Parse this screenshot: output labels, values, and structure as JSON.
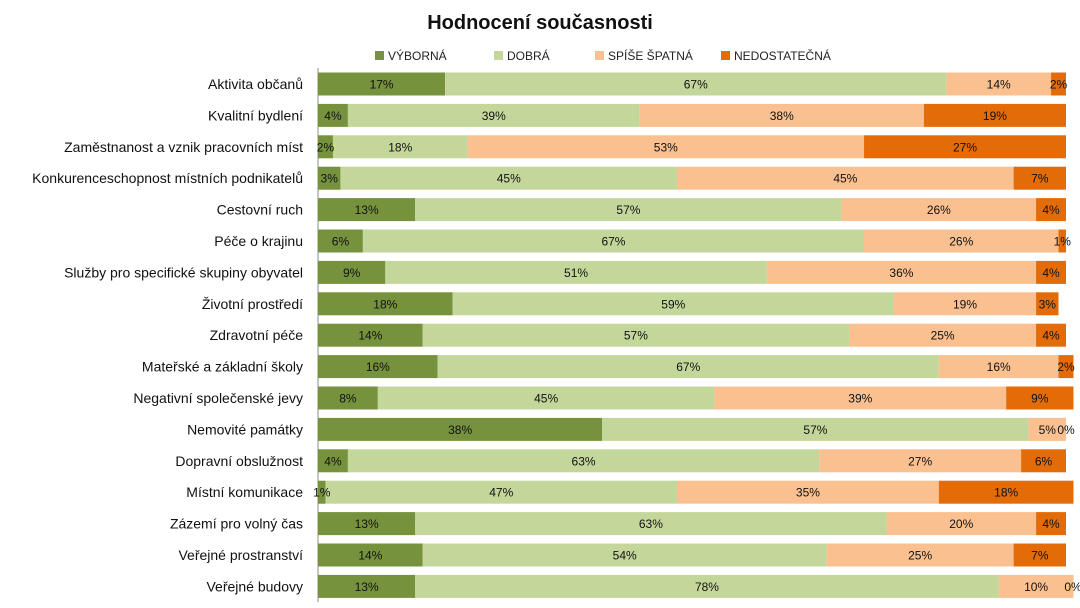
{
  "chart_data": {
    "type": "bar",
    "orientation": "horizontal",
    "stacked": true,
    "percent": true,
    "title": "Hodnocení současnosti",
    "legend_position": "top",
    "grid": false,
    "xlim": [
      0,
      100
    ],
    "categories": [
      "Aktivita občanů",
      "Kvalitní bydlení",
      "Zaměstnanost a vznik pracovních míst",
      "Konkurenceschopnost místních podnikatelů",
      "Cestovní ruch",
      "Péče o krajinu",
      "Služby pro specifické skupiny obyvatel",
      "Životní prostředí",
      "Zdravotní péče",
      "Mateřské a základní školy",
      "Negativní společenské jevy",
      "Nemovité památky",
      "Dopravní obslužnost",
      "Místní komunikace",
      "Zázemí pro volný čas",
      "Veřejné prostranství",
      "Veřejné budovy"
    ],
    "series": [
      {
        "name": "VÝBORNÁ",
        "color": "#76923c",
        "values": [
          17,
          4,
          2,
          3,
          13,
          6,
          9,
          18,
          14,
          16,
          8,
          38,
          4,
          1,
          13,
          14,
          13
        ]
      },
      {
        "name": "DOBRÁ",
        "color": "#c4d79b",
        "values": [
          67,
          39,
          18,
          45,
          57,
          67,
          51,
          59,
          57,
          67,
          45,
          57,
          63,
          47,
          63,
          54,
          78
        ]
      },
      {
        "name": "SPÍŠE ŠPATNÁ",
        "color": "#fac090",
        "values": [
          14,
          38,
          53,
          45,
          26,
          26,
          36,
          19,
          25,
          16,
          39,
          5,
          27,
          35,
          20,
          25,
          10
        ]
      },
      {
        "name": "NEDOSTATEČNÁ",
        "color": "#e36c09",
        "values": [
          2,
          19,
          27,
          7,
          4,
          1,
          4,
          3,
          4,
          2,
          9,
          0,
          6,
          18,
          4,
          7,
          0
        ]
      }
    ],
    "value_suffix": "%"
  }
}
